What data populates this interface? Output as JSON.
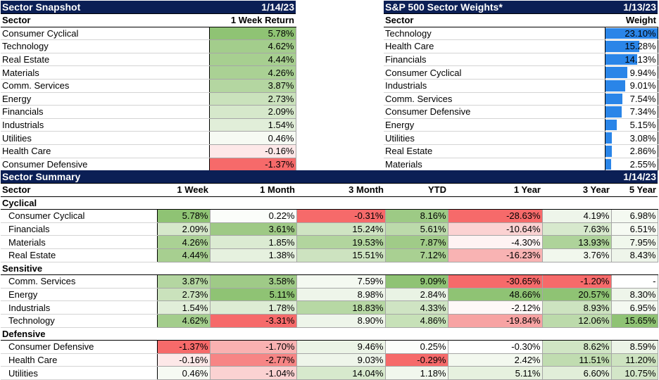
{
  "snapshot": {
    "title": "Sector Snapshot",
    "date": "1/14/23",
    "col_sector": "Sector",
    "col_return": "1 Week Return",
    "rows": [
      {
        "sector": "Consumer Cyclical",
        "ret": "5.78%",
        "color": "#8fc374"
      },
      {
        "sector": "Technology",
        "ret": "4.62%",
        "color": "#a3cd8c"
      },
      {
        "sector": "Real Estate",
        "ret": "4.44%",
        "color": "#a7cf90"
      },
      {
        "sector": "Materials",
        "ret": "4.26%",
        "color": "#aad194"
      },
      {
        "sector": "Comm. Services",
        "ret": "3.87%",
        "color": "#b4d6a1"
      },
      {
        "sector": "Energy",
        "ret": "2.73%",
        "color": "#cae2bc"
      },
      {
        "sector": "Financials",
        "ret": "2.09%",
        "color": "#d6e8cb"
      },
      {
        "sector": "Industrials",
        "ret": "1.54%",
        "color": "#e1eed9"
      },
      {
        "sector": "Utilities",
        "ret": "0.46%",
        "color": "#f6faf3"
      },
      {
        "sector": "Health Care",
        "ret": "-0.16%",
        "color": "#fde8e8"
      },
      {
        "sector": "Consumer Defensive",
        "ret": "-1.37%",
        "color": "#f66a6a"
      }
    ]
  },
  "weights": {
    "title": "S&P 500 Sector Weights*",
    "date": "1/13/23",
    "col_sector": "Sector",
    "col_weight": "Weight",
    "rows": [
      {
        "sector": "Technology",
        "weight": "23.10%",
        "value": 23.1
      },
      {
        "sector": "Health Care",
        "weight": "15.28%",
        "value": 15.28
      },
      {
        "sector": "Financials",
        "weight": "14.13%",
        "value": 14.13
      },
      {
        "sector": "Consumer Cyclical",
        "weight": "9.94%",
        "value": 9.94
      },
      {
        "sector": "Industrials",
        "weight": "9.01%",
        "value": 9.01
      },
      {
        "sector": "Comm. Services",
        "weight": "7.54%",
        "value": 7.54
      },
      {
        "sector": "Consumer Defensive",
        "weight": "7.34%",
        "value": 7.34
      },
      {
        "sector": "Energy",
        "weight": "5.15%",
        "value": 5.15
      },
      {
        "sector": "Utilities",
        "weight": "3.08%",
        "value": 3.08
      },
      {
        "sector": "Real Estate",
        "weight": "2.86%",
        "value": 2.86
      },
      {
        "sector": "Materials",
        "weight": "2.55%",
        "value": 2.55
      }
    ]
  },
  "summary": {
    "title": "Sector Summary",
    "date": "1/14/23",
    "columns": [
      "Sector",
      "1 Week",
      "1 Month",
      "3 Month",
      "YTD",
      "1 Year",
      "3 Year",
      "5 Year"
    ],
    "groups": [
      {
        "name": "Cyclical",
        "rows": [
          {
            "sector": "Consumer Cyclical",
            "cells": [
              {
                "v": "5.78%",
                "c": "#8fc374"
              },
              {
                "v": "0.22%",
                "c": "#fbfdfa"
              },
              {
                "v": "-0.31%",
                "c": "#f66a6a"
              },
              {
                "v": "8.16%",
                "c": "#9dca85"
              },
              {
                "v": "-28.63%",
                "c": "#f66a6a"
              },
              {
                "v": "4.19%",
                "c": "#eef5ea"
              },
              {
                "v": "6.98%",
                "c": "#f4f9f1"
              }
            ]
          },
          {
            "sector": "Financials",
            "cells": [
              {
                "v": "2.09%",
                "c": "#d6e8cb"
              },
              {
                "v": "3.61%",
                "c": "#9ec985"
              },
              {
                "v": "15.24%",
                "c": "#cfe4c3"
              },
              {
                "v": "5.61%",
                "c": "#bcdaab"
              },
              {
                "v": "-10.64%",
                "c": "#fbd2d2"
              },
              {
                "v": "7.63%",
                "c": "#d7e9cd"
              },
              {
                "v": "6.51%",
                "c": "#f6faf3"
              }
            ]
          },
          {
            "sector": "Materials",
            "cells": [
              {
                "v": "4.26%",
                "c": "#aad194"
              },
              {
                "v": "1.85%",
                "c": "#dbebd2"
              },
              {
                "v": "19.53%",
                "c": "#b2d59e"
              },
              {
                "v": "7.87%",
                "c": "#a0cb88"
              },
              {
                "v": "-4.30%",
                "c": "#fef3f3"
              },
              {
                "v": "13.93%",
                "c": "#aed39a"
              },
              {
                "v": "7.95%",
                "c": "#f0f7ec"
              }
            ]
          },
          {
            "sector": "Real Estate",
            "cells": [
              {
                "v": "4.44%",
                "c": "#a7cf90"
              },
              {
                "v": "1.38%",
                "c": "#e6f1df"
              },
              {
                "v": "15.51%",
                "c": "#cde3c0"
              },
              {
                "v": "7.12%",
                "c": "#a9d092"
              },
              {
                "v": "-16.23%",
                "c": "#f8b3b3"
              },
              {
                "v": "3.76%",
                "c": "#f1f7ed"
              },
              {
                "v": "8.43%",
                "c": "#eef5ea"
              }
            ]
          }
        ]
      },
      {
        "name": "Sensitive",
        "rows": [
          {
            "sector": "Comm. Services",
            "cells": [
              {
                "v": "3.87%",
                "c": "#b4d6a1"
              },
              {
                "v": "3.58%",
                "c": "#9fca87"
              },
              {
                "v": "7.59%",
                "c": "#f4f9f1"
              },
              {
                "v": "9.09%",
                "c": "#8fc374"
              },
              {
                "v": "-30.65%",
                "c": "#f66a6a"
              },
              {
                "v": "-1.20%",
                "c": "#f66a6a"
              },
              {
                "v": "-",
                "c": "#ffffff"
              }
            ]
          },
          {
            "sector": "Energy",
            "cells": [
              {
                "v": "2.73%",
                "c": "#cae2bc"
              },
              {
                "v": "5.11%",
                "c": "#8fc374"
              },
              {
                "v": "8.98%",
                "c": "#eef5ea"
              },
              {
                "v": "2.84%",
                "c": "#e9f3e4"
              },
              {
                "v": "48.66%",
                "c": "#8fc374"
              },
              {
                "v": "20.57%",
                "c": "#8fc374"
              },
              {
                "v": "8.30%",
                "c": "#eef5ea"
              }
            ]
          },
          {
            "sector": "Industrials",
            "cells": [
              {
                "v": "1.54%",
                "c": "#e1eed9"
              },
              {
                "v": "1.78%",
                "c": "#ddecd4"
              },
              {
                "v": "18.83%",
                "c": "#b7d8a4"
              },
              {
                "v": "4.33%",
                "c": "#cfe4c3"
              },
              {
                "v": "-2.12%",
                "c": "#fef8f8"
              },
              {
                "v": "8.93%",
                "c": "#cde3c0"
              },
              {
                "v": "6.95%",
                "c": "#f4f9f1"
              }
            ]
          },
          {
            "sector": "Technology",
            "cells": [
              {
                "v": "4.62%",
                "c": "#a3cd8c"
              },
              {
                "v": "-3.31%",
                "c": "#f66a6a"
              },
              {
                "v": "8.90%",
                "c": "#eef5ea"
              },
              {
                "v": "4.86%",
                "c": "#c7e1b8"
              },
              {
                "v": "-19.84%",
                "c": "#f7a3a3"
              },
              {
                "v": "12.06%",
                "c": "#bcdaab"
              },
              {
                "v": "15.65%",
                "c": "#8fc374"
              }
            ]
          }
        ]
      },
      {
        "name": "Defensive",
        "rows": [
          {
            "sector": "Consumer Defensive",
            "cells": [
              {
                "v": "-1.37%",
                "c": "#f66a6a"
              },
              {
                "v": "-1.70%",
                "c": "#f9b1b1"
              },
              {
                "v": "9.46%",
                "c": "#ebf4e6"
              },
              {
                "v": "0.25%",
                "c": "#fbfdfa"
              },
              {
                "v": "-0.30%",
                "c": "#ffffff"
              },
              {
                "v": "8.62%",
                "c": "#d0e5c4"
              },
              {
                "v": "8.59%",
                "c": "#ecf4e7"
              }
            ]
          },
          {
            "sector": "Health Care",
            "cells": [
              {
                "v": "-0.16%",
                "c": "#fde8e8"
              },
              {
                "v": "-2.77%",
                "c": "#f78585"
              },
              {
                "v": "9.03%",
                "c": "#eef5ea"
              },
              {
                "v": "-0.29%",
                "c": "#f66a6a"
              },
              {
                "v": "2.42%",
                "c": "#f3f8ef"
              },
              {
                "v": "11.51%",
                "c": "#c0dcb0"
              },
              {
                "v": "11.20%",
                "c": "#cde3c0"
              }
            ]
          },
          {
            "sector": "Utilities",
            "cells": [
              {
                "v": "0.46%",
                "c": "#f6faf3"
              },
              {
                "v": "-1.04%",
                "c": "#fbd2d2"
              },
              {
                "v": "14.04%",
                "c": "#d7e9cd"
              },
              {
                "v": "1.18%",
                "c": "#f1f7ed"
              },
              {
                "v": "5.11%",
                "c": "#e6f1df"
              },
              {
                "v": "6.60%",
                "c": "#e1eed9"
              },
              {
                "v": "10.75%",
                "c": "#d3e6c8"
              }
            ]
          }
        ]
      }
    ]
  }
}
